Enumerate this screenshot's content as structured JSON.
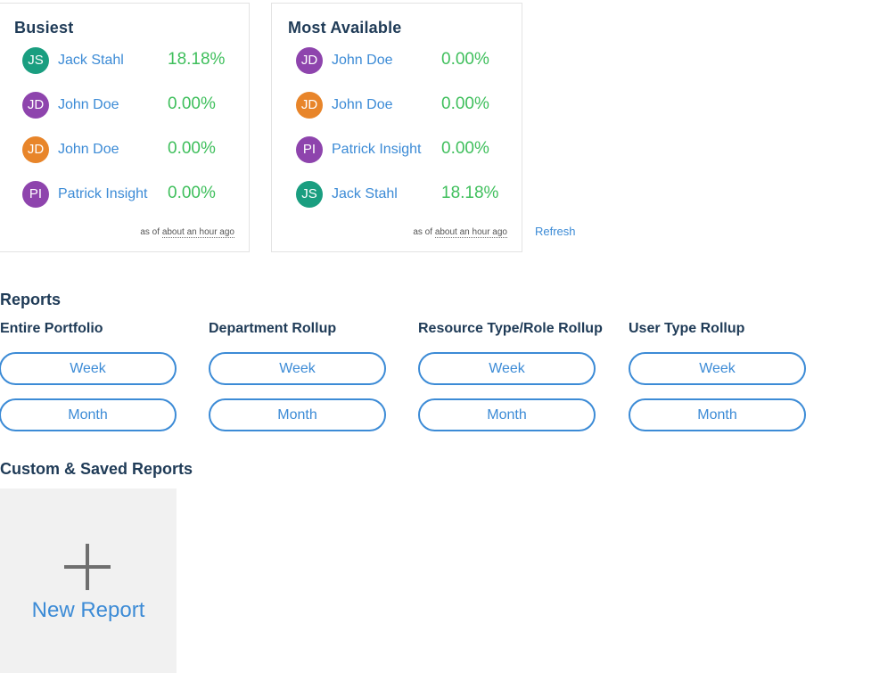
{
  "busiest": {
    "title": "Busiest",
    "rows": [
      {
        "initials": "JS",
        "name": "Jack Stahl",
        "pct": "18.18%",
        "color": "#1a9e80"
      },
      {
        "initials": "JD",
        "name": "John Doe",
        "pct": "0.00%",
        "color": "#8e44ad"
      },
      {
        "initials": "JD",
        "name": "John Doe",
        "pct": "0.00%",
        "color": "#e8852a"
      },
      {
        "initials": "PI",
        "name": "Patrick Insight",
        "pct": "0.00%",
        "color": "#8e44ad"
      }
    ],
    "asof_prefix": "as of",
    "asof_time": "about an hour ago"
  },
  "most_available": {
    "title": "Most Available",
    "rows": [
      {
        "initials": "JD",
        "name": "John Doe",
        "pct": "0.00%",
        "color": "#8e44ad"
      },
      {
        "initials": "JD",
        "name": "John Doe",
        "pct": "0.00%",
        "color": "#e8852a"
      },
      {
        "initials": "PI",
        "name": "Patrick Insight",
        "pct": "0.00%",
        "color": "#8e44ad"
      },
      {
        "initials": "JS",
        "name": "Jack Stahl",
        "pct": "18.18%",
        "color": "#1a9e80"
      }
    ],
    "asof_prefix": "as of",
    "asof_time": "about an hour ago"
  },
  "refresh_label": "Refresh",
  "reports": {
    "title": "Reports",
    "columns": [
      {
        "heading": "Entire Portfolio",
        "week": "Week",
        "month": "Month"
      },
      {
        "heading": "Department Rollup",
        "week": "Week",
        "month": "Month"
      },
      {
        "heading": "Resource Type/Role Rollup",
        "week": "Week",
        "month": "Month"
      },
      {
        "heading": "User Type Rollup",
        "week": "Week",
        "month": "Month"
      }
    ]
  },
  "custom": {
    "title": "Custom & Saved Reports",
    "new_report_label": "New Report",
    "new_report_icon": "plus-icon"
  },
  "colors": {
    "accent": "#3c8bd6",
    "percent": "#3fbf5c",
    "heading": "#1f3b57"
  }
}
